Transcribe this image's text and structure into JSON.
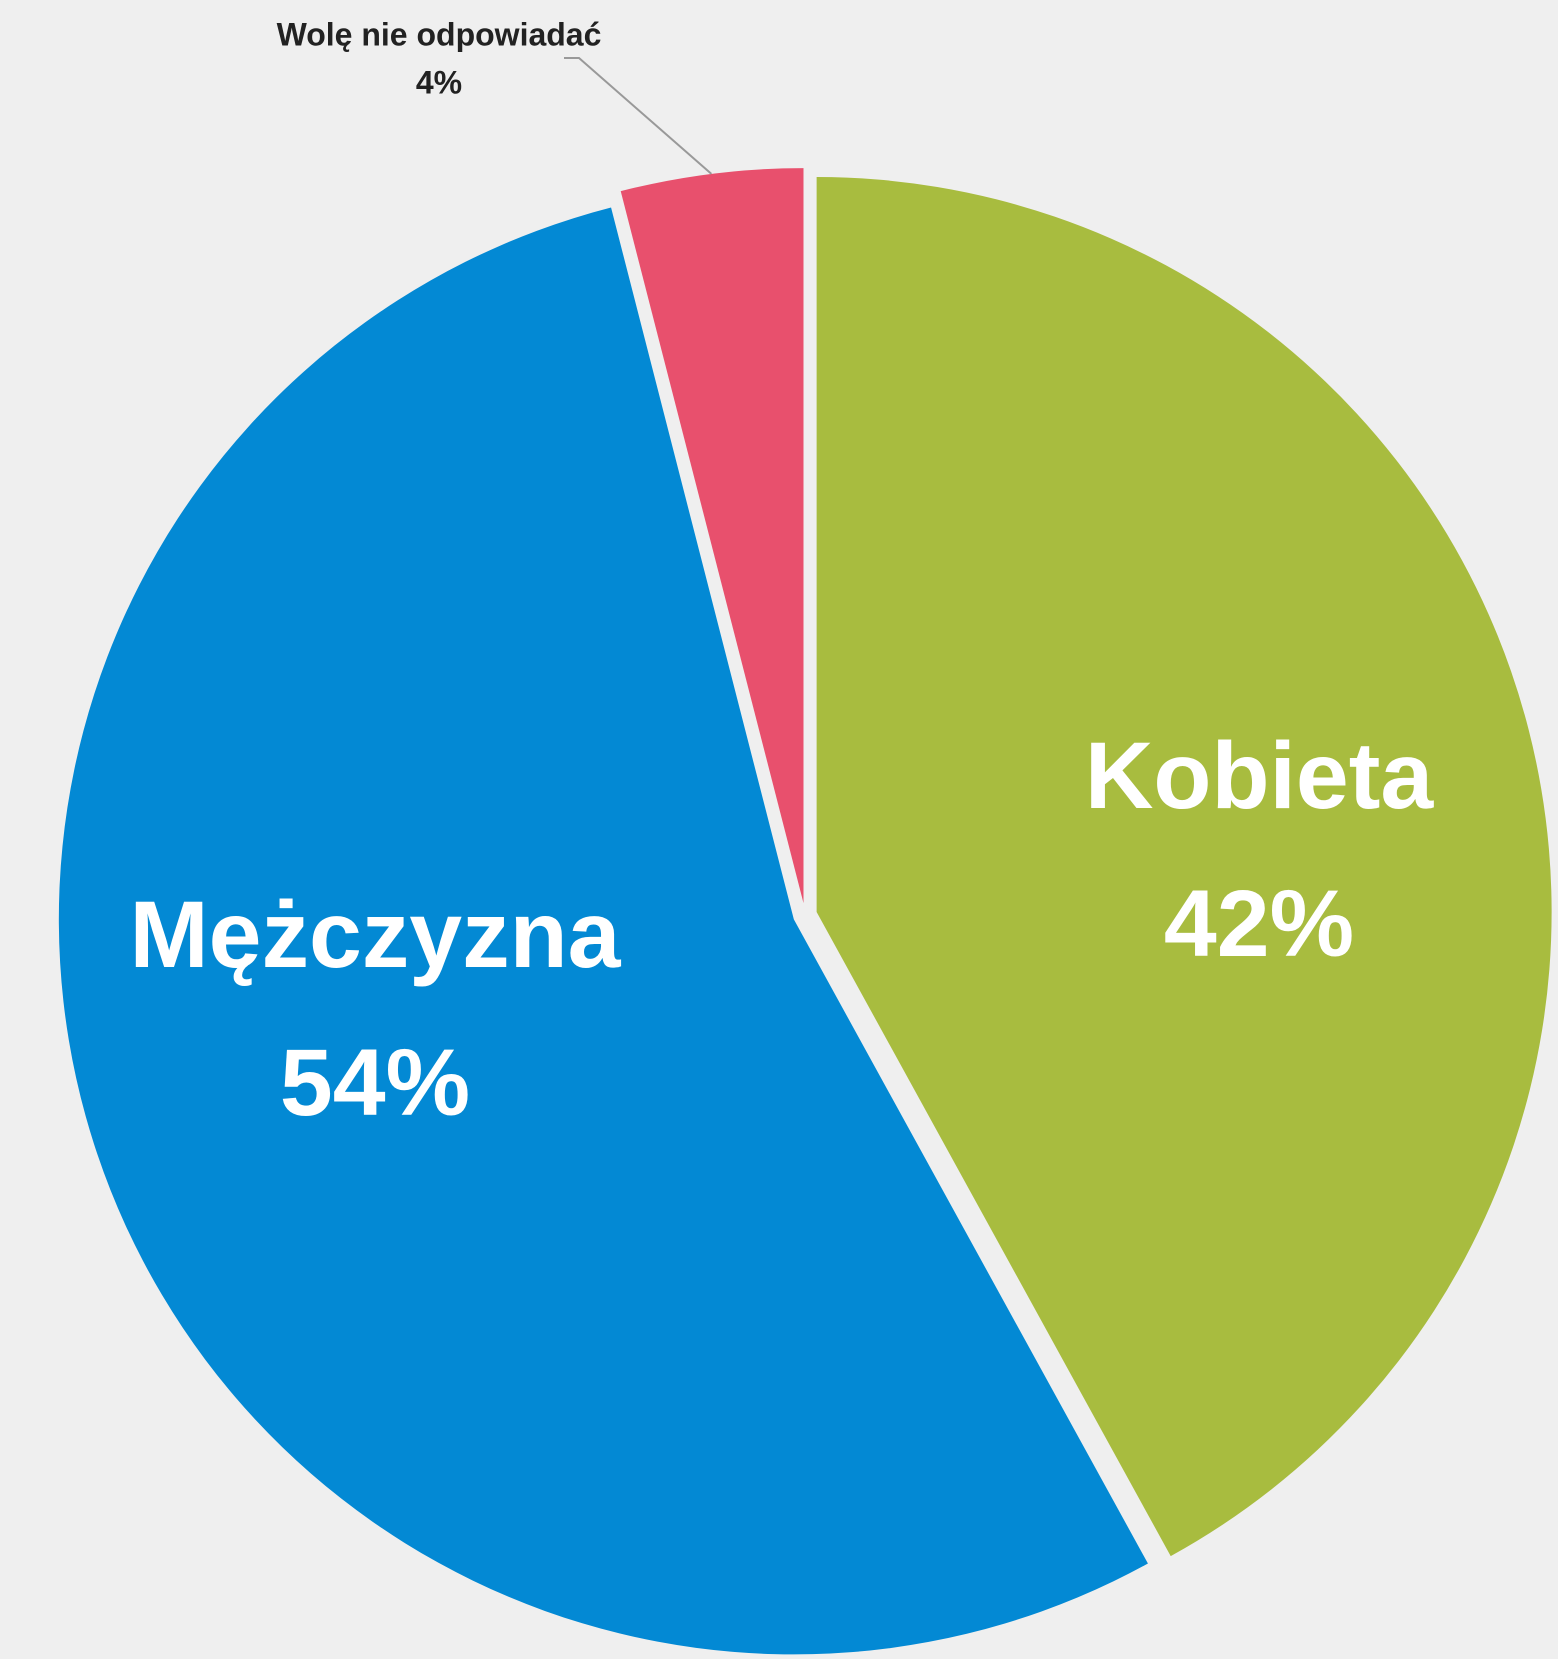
{
  "chart_data": {
    "type": "pie",
    "categories": [
      "Kobieta",
      "Mężczyzna",
      "Wolę nie odpowiadać"
    ],
    "values": [
      42,
      54,
      4
    ],
    "value_labels": [
      "42%",
      "54%",
      "4%"
    ],
    "colors": [
      "#a8bc3f",
      "#0389d4",
      "#e8506d"
    ]
  }
}
